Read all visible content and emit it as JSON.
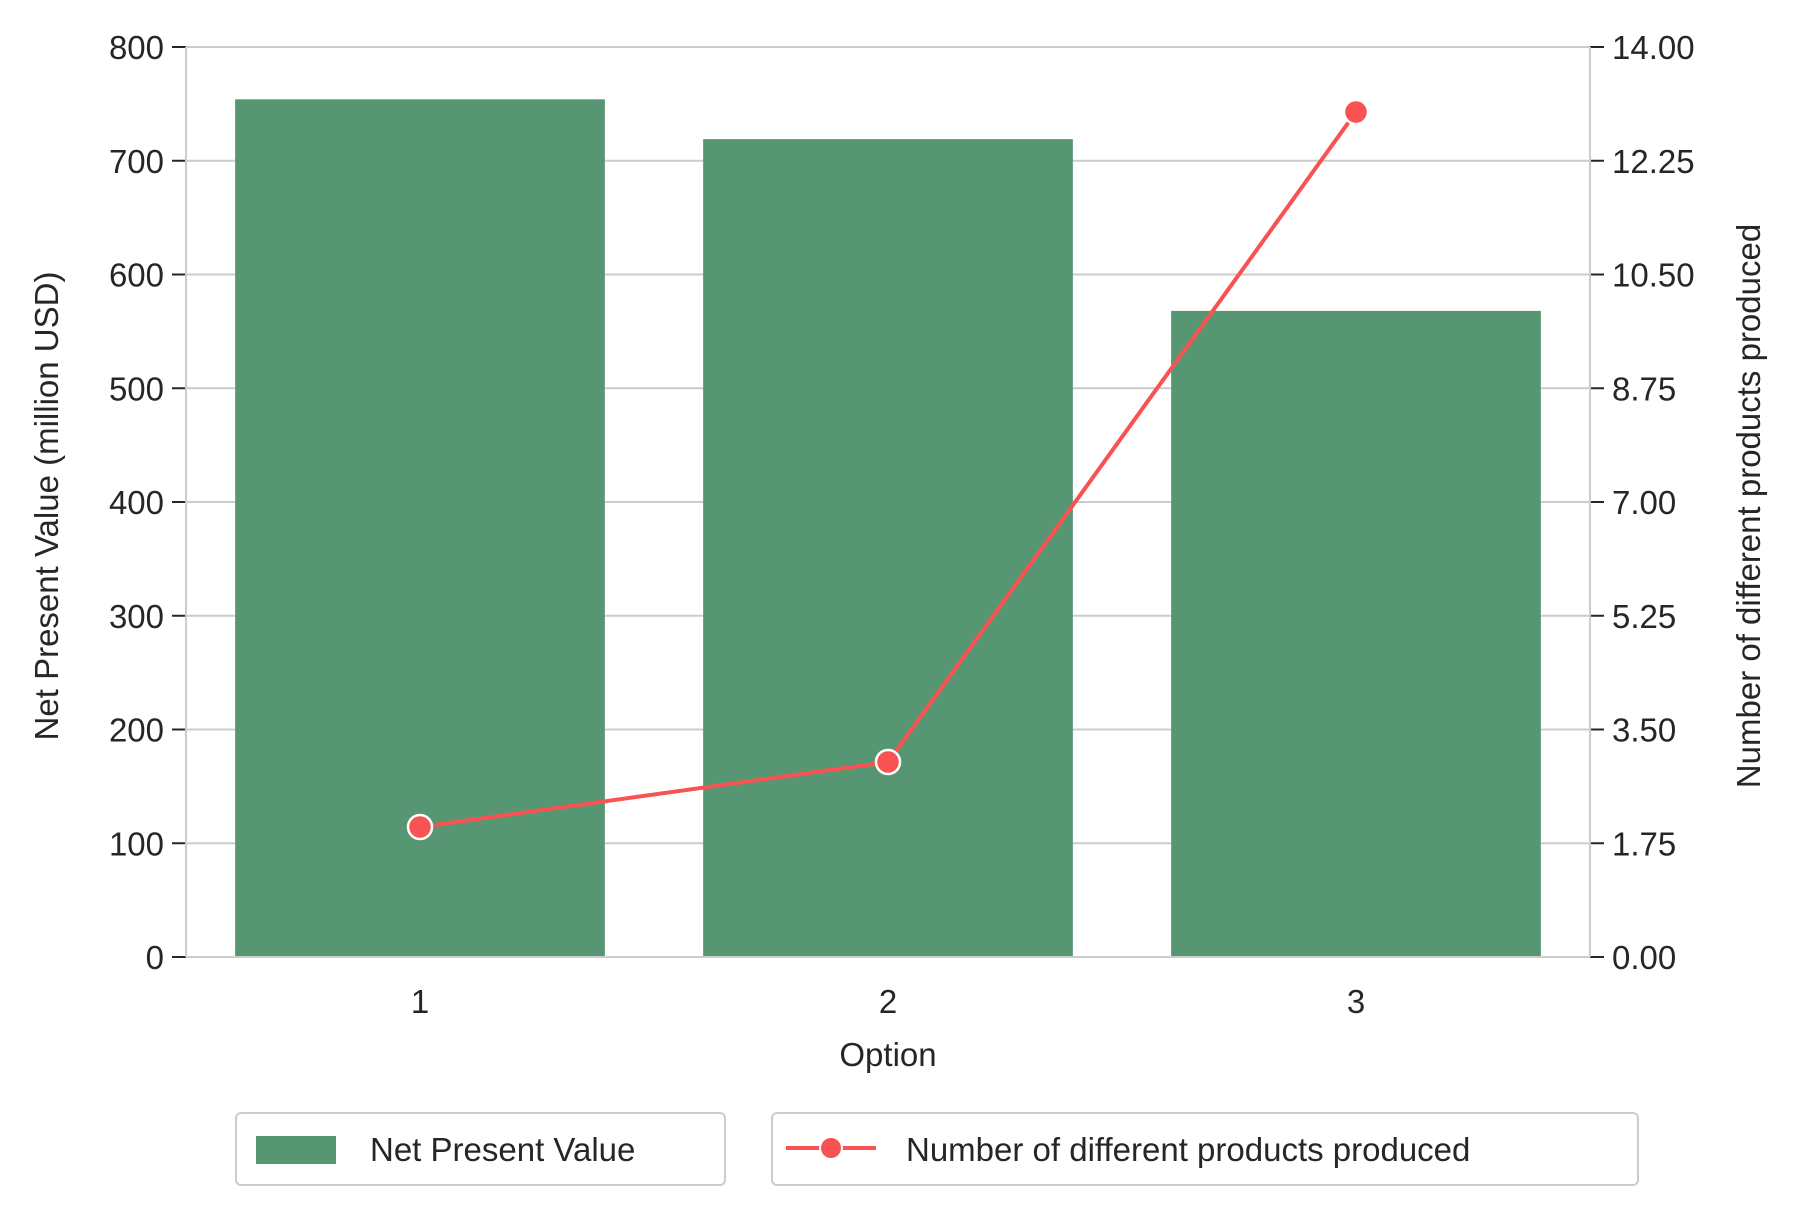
{
  "colors": {
    "bar": "#569673",
    "line": "#f85252",
    "grid": "#cccccc",
    "axis": "#cccccc",
    "text": "#262626"
  },
  "chart_data": {
    "type": "bar",
    "categories": [
      "1",
      "2",
      "3"
    ],
    "xlabel": "Option",
    "ylabel": "Net Present Value (million USD)",
    "ylabel_right": "Number of different products produced",
    "ylim": [
      0,
      800
    ],
    "ylim_right": [
      0,
      14
    ],
    "yticks": [
      "0",
      "100",
      "200",
      "300",
      "400",
      "500",
      "600",
      "700",
      "800"
    ],
    "yticks_right": [
      "0.00",
      "1.75",
      "3.50",
      "5.25",
      "7.00",
      "8.75",
      "10.50",
      "12.25",
      "14.00"
    ],
    "grid": true,
    "legend_position": "bottom-center",
    "series": [
      {
        "name": "Net Present Value",
        "type": "bar",
        "axis": "left",
        "values": [
          754,
          719,
          568
        ]
      },
      {
        "name": "Number of different products produced",
        "type": "line",
        "axis": "right",
        "marker": "circle",
        "values": [
          2,
          3,
          13
        ]
      }
    ]
  }
}
